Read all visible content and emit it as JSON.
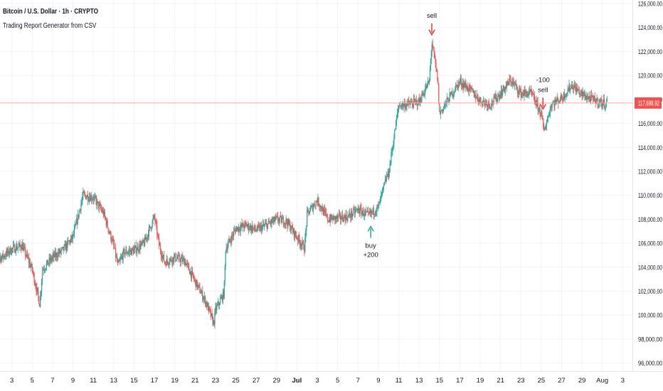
{
  "header": {
    "title": "Bitcoin / U.S. Dollar · 1h · CRYPTO",
    "subtitle": "Trading Report Generator from CSV"
  },
  "colors": {
    "up": "#26a69a",
    "down": "#ef5350",
    "price_line": "#f0a9a9",
    "price_label_bg": "#ef5350",
    "grid": "#f0f3fa",
    "axis_text": "#131722",
    "buy_marker": "#26a69a",
    "sell_marker": "#e53935"
  },
  "chart_data": {
    "type": "candlestick",
    "timeframe": "1h",
    "ylim": [
      95800,
      126000
    ],
    "yticks": [
      96000,
      98000,
      100000,
      102000,
      104000,
      106000,
      108000,
      110000,
      112000,
      114000,
      116000,
      118000,
      120000,
      122000,
      124000,
      126000
    ],
    "ytick_labels": [
      "96,000.00",
      "98,000.00",
      "100,000.00",
      "102,000.00",
      "104,000.00",
      "106,000.00",
      "108,000.00",
      "110,000.00",
      "112,000.00",
      "114,000.00",
      "116,000.00",
      "118,000.00",
      "120,000.00",
      "122,000.00",
      "124,000.00",
      "126,000.00"
    ],
    "x_ticks": [
      "3",
      "5",
      "7",
      "9",
      "11",
      "13",
      "15",
      "17",
      "19",
      "21",
      "23",
      "25",
      "27",
      "29",
      "Jul",
      "3",
      "5",
      "7",
      "9",
      "11",
      "13",
      "15",
      "17",
      "19",
      "21",
      "23",
      "25",
      "27",
      "29",
      "Aug",
      "3"
    ],
    "bold_ticks": [
      "Jul"
    ],
    "last_price": 117698.92,
    "last_price_label": "117,698.92",
    "price_path": [
      [
        "2025-06-02",
        104800
      ],
      [
        "2025-06-03",
        105500
      ],
      [
        "2025-06-04",
        105800
      ],
      [
        "2025-06-05",
        103800
      ],
      [
        "2025-06-05T18",
        100900
      ],
      [
        "2025-06-06",
        103800
      ],
      [
        "2025-06-07",
        104800
      ],
      [
        "2025-06-08",
        105400
      ],
      [
        "2025-06-09",
        106500
      ],
      [
        "2025-06-10",
        110000
      ],
      [
        "2025-06-11",
        109800
      ],
      [
        "2025-06-12",
        108500
      ],
      [
        "2025-06-13",
        105800
      ],
      [
        "2025-06-13T10",
        104100
      ],
      [
        "2025-06-14",
        105200
      ],
      [
        "2025-06-15",
        105400
      ],
      [
        "2025-06-16",
        106000
      ],
      [
        "2025-06-17",
        108200
      ],
      [
        "2025-06-17T12",
        105700
      ],
      [
        "2025-06-18",
        104400
      ],
      [
        "2025-06-19",
        104800
      ],
      [
        "2025-06-20",
        104500
      ],
      [
        "2025-06-21",
        102800
      ],
      [
        "2025-06-22",
        101200
      ],
      [
        "2025-06-22T20",
        99300
      ],
      [
        "2025-06-23",
        100400
      ],
      [
        "2025-06-23T20",
        101800
      ],
      [
        "2025-06-24",
        105500
      ],
      [
        "2025-06-25",
        107200
      ],
      [
        "2025-06-26",
        107500
      ],
      [
        "2025-06-27",
        107100
      ],
      [
        "2025-06-28",
        107500
      ],
      [
        "2025-06-29",
        108000
      ],
      [
        "2025-06-30",
        107800
      ],
      [
        "2025-07-01",
        106500
      ],
      [
        "2025-07-01T18",
        105600
      ],
      [
        "2025-07-02",
        108400
      ],
      [
        "2025-07-03",
        109600
      ],
      [
        "2025-07-04",
        108000
      ],
      [
        "2025-07-05",
        108100
      ],
      [
        "2025-07-06",
        108200
      ],
      [
        "2025-07-07",
        108800
      ],
      [
        "2025-07-08",
        108300
      ],
      [
        "2025-07-09",
        109000
      ],
      [
        "2025-07-09T20",
        111600
      ],
      [
        "2025-07-10",
        111800
      ],
      [
        "2025-07-11",
        117500
      ],
      [
        "2025-07-12",
        117600
      ],
      [
        "2025-07-13",
        117800
      ],
      [
        "2025-07-14",
        119500
      ],
      [
        "2025-07-14T06",
        122800
      ],
      [
        "2025-07-14T20",
        119600
      ],
      [
        "2025-07-15",
        116800
      ],
      [
        "2025-07-16",
        118200
      ],
      [
        "2025-07-17",
        119500
      ],
      [
        "2025-07-18",
        118800
      ],
      [
        "2025-07-19",
        117900
      ],
      [
        "2025-07-20",
        117600
      ],
      [
        "2025-07-21",
        118500
      ],
      [
        "2025-07-22",
        119600
      ],
      [
        "2025-07-23",
        118500
      ],
      [
        "2025-07-24",
        118500
      ],
      [
        "2025-07-25",
        116800
      ],
      [
        "2025-07-25T06",
        115300
      ],
      [
        "2025-07-26",
        117600
      ],
      [
        "2025-07-27",
        118100
      ],
      [
        "2025-07-28",
        119200
      ],
      [
        "2025-07-29",
        118400
      ],
      [
        "2025-07-30",
        118000
      ],
      [
        "2025-07-31",
        117700
      ]
    ],
    "trade_markers": [
      {
        "type": "sell",
        "labels": [
          "sell"
        ],
        "x": "2025-07-14T06",
        "y": 123400,
        "arrow": "down"
      },
      {
        "type": "buy",
        "labels": [
          "buy",
          "+200"
        ],
        "x": "2025-07-08T06",
        "y": 107400,
        "arrow": "up"
      },
      {
        "type": "sell",
        "labels": [
          "-100",
          "sell"
        ],
        "x": "2025-07-25T04",
        "y": 117200,
        "arrow": "down"
      }
    ]
  }
}
